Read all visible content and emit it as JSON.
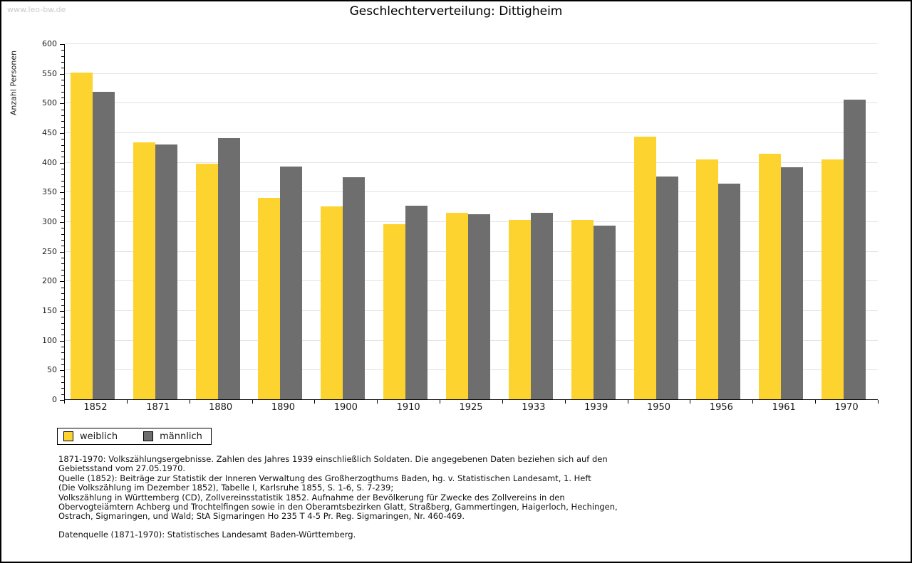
{
  "watermark": "www.leo-bw.de",
  "title": "Geschlechterverteilung: Dittigheim",
  "chart_data": {
    "type": "bar",
    "title": "Geschlechterverteilung: Dittigheim",
    "xlabel": "",
    "ylabel": "Anzahl Personen",
    "ylim": [
      0,
      600
    ],
    "ytick_step": 50,
    "yminor_step": 10,
    "grid": true,
    "legend_position": "bottom-left",
    "categories": [
      "1852",
      "1871",
      "1880",
      "1890",
      "1900",
      "1910",
      "1925",
      "1933",
      "1939",
      "1950",
      "1956",
      "1961",
      "1970"
    ],
    "series": [
      {
        "name": "weiblich",
        "color": "#fdd32f",
        "values": [
          551,
          433,
          397,
          340,
          325,
          295,
          314,
          302,
          302,
          443,
          404,
          414,
          405
        ]
      },
      {
        "name": "männlich",
        "color": "#6e6e6e",
        "values": [
          518,
          430,
          440,
          392,
          375,
          327,
          312,
          314,
          293,
          376,
          364,
          391,
          505
        ]
      }
    ]
  },
  "colors": {
    "weiblich": "#fdd32f",
    "maennlich": "#6e6e6e",
    "gridline": "#e2e2e2",
    "axis": "#000000",
    "watermark": "#c9c9c9",
    "page_border": "#000000"
  },
  "footer": {
    "lines": [
      "1871-1970: Volkszählungsergebnisse. Zahlen des Jahres 1939 einschließlich Soldaten. Die angegebenen Daten beziehen sich auf den",
      "Gebietsstand vom 27.05.1970.",
      "Quelle (1852): Beiträge zur Statistik der Inneren Verwaltung des Großherzogthums Baden, hg. v. Statistischen Landesamt, 1. Heft",
      "(Die Volkszählung im Dezember 1852), Tabelle I, Karlsruhe 1855, S. 1-6, S. 7-239;",
      "Volkszählung in Württemberg (CD), Zollvereinsstatistik 1852. Aufnahme der Bevölkerung für Zwecke des Zollvereins in den",
      "Obervogteiämtern Achberg und Trochtelfingen sowie in den Oberamtsbezirken Glatt, Straßberg, Gammertingen, Haigerloch, Hechingen,",
      "Ostrach, Sigmaringen, und Wald; StA Sigmaringen Ho 235 T 4-5 Pr. Reg. Sigmaringen, Nr. 460-469."
    ],
    "datenquelle": "Datenquelle (1871-1970): Statistisches Landesamt Baden-Württemberg."
  }
}
